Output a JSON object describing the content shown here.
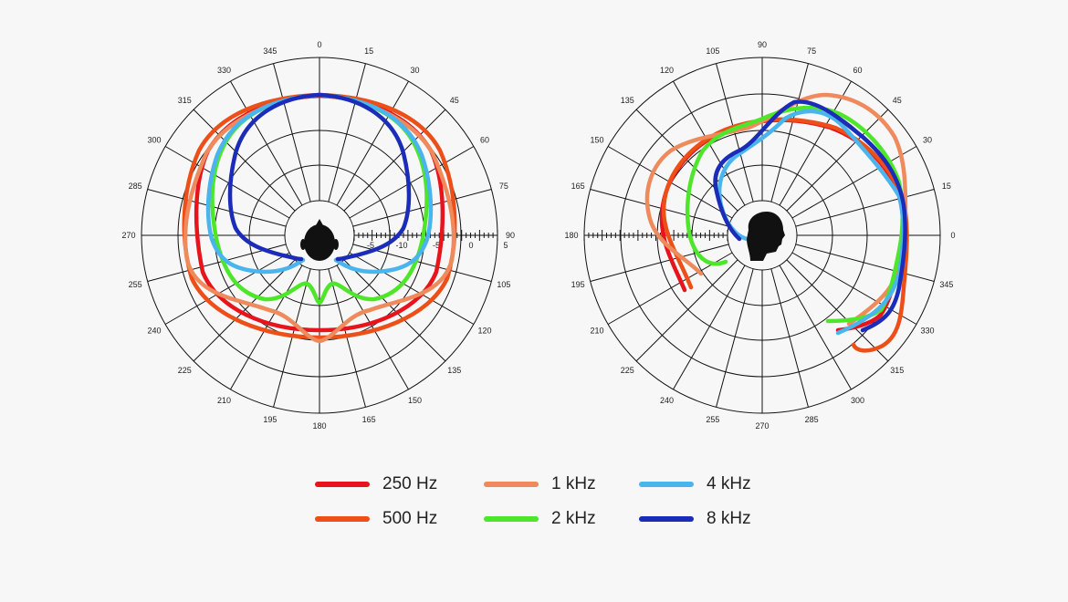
{
  "chart_data": {
    "type": "polar",
    "units_scale": [
      "-5",
      "-10",
      "-5",
      "0",
      "5"
    ],
    "series": [
      {
        "name": "250 Hz",
        "color": "#e8141c"
      },
      {
        "name": "500 Hz",
        "color": "#ec4f18"
      },
      {
        "name": "1 kHz",
        "color": "#ee8a5c"
      },
      {
        "name": "2 kHz",
        "color": "#4ee62a"
      },
      {
        "name": "4 kHz",
        "color": "#4ab4ee"
      },
      {
        "name": "8 kHz",
        "color": "#1a2cb8"
      }
    ],
    "charts": [
      {
        "view": "top",
        "angle_labels": [
          "0",
          "15",
          "30",
          "45",
          "60",
          "75",
          "90",
          "105",
          "120",
          "135",
          "150",
          "165",
          "180",
          "195",
          "210",
          "225",
          "240",
          "255",
          "270",
          "285",
          "300",
          "315",
          "330",
          "345"
        ],
        "angle_values": [
          0,
          15,
          30,
          45,
          60,
          75,
          90,
          105,
          120,
          135,
          150,
          165,
          180,
          195,
          210,
          225,
          240,
          255,
          270,
          285,
          300,
          315,
          330,
          345
        ]
      },
      {
        "view": "side",
        "angle_labels": [
          "90",
          "75",
          "60",
          "45",
          "30",
          "15",
          "0",
          "345",
          "330",
          "315",
          "300",
          "285",
          "270",
          "255",
          "240",
          "225",
          "210",
          "195",
          "180",
          "165",
          "150",
          "135",
          "120",
          "105"
        ],
        "angle_values": [
          90,
          75,
          60,
          45,
          30,
          15,
          0,
          345,
          330,
          315,
          300,
          285,
          270,
          255,
          240,
          225,
          210,
          195,
          180,
          165,
          150,
          135,
          120,
          105
        ]
      }
    ]
  },
  "legend": {
    "items": [
      {
        "label": "250 Hz",
        "color": "#e8141c"
      },
      {
        "label": "1 kHz",
        "color": "#ee8a5c"
      },
      {
        "label": "4 kHz",
        "color": "#4ab4ee"
      },
      {
        "label": "500 Hz",
        "color": "#ec4f18"
      },
      {
        "label": "2 kHz",
        "color": "#4ee62a"
      },
      {
        "label": "8 kHz",
        "color": "#1a2cb8"
      }
    ]
  }
}
